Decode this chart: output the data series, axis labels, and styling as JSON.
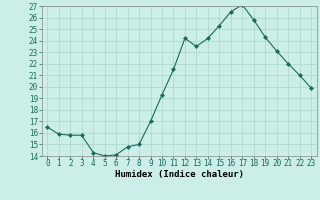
{
  "x": [
    0,
    1,
    2,
    3,
    4,
    5,
    6,
    7,
    8,
    9,
    10,
    11,
    12,
    13,
    14,
    15,
    16,
    17,
    18,
    19,
    20,
    21,
    22,
    23
  ],
  "y": [
    16.5,
    15.9,
    15.8,
    15.8,
    14.3,
    14.0,
    14.1,
    14.8,
    15.0,
    17.0,
    19.3,
    21.5,
    24.2,
    23.5,
    24.2,
    25.3,
    26.5,
    27.1,
    25.8,
    24.3,
    23.1,
    22.0,
    21.0,
    19.9
  ],
  "line_color": "#1a6b5a",
  "marker": "D",
  "marker_size": 2.0,
  "bg_color": "#cceee8",
  "grid_color": "#aad4cc",
  "xlabel": "Humidex (Indice chaleur)",
  "ylim": [
    14,
    27
  ],
  "xlim_min": -0.5,
  "xlim_max": 23.5,
  "yticks": [
    14,
    15,
    16,
    17,
    18,
    19,
    20,
    21,
    22,
    23,
    24,
    25,
    26,
    27
  ],
  "xticks": [
    0,
    1,
    2,
    3,
    4,
    5,
    6,
    7,
    8,
    9,
    10,
    11,
    12,
    13,
    14,
    15,
    16,
    17,
    18,
    19,
    20,
    21,
    22,
    23
  ],
  "label_fontsize": 6.5,
  "tick_fontsize": 5.5
}
